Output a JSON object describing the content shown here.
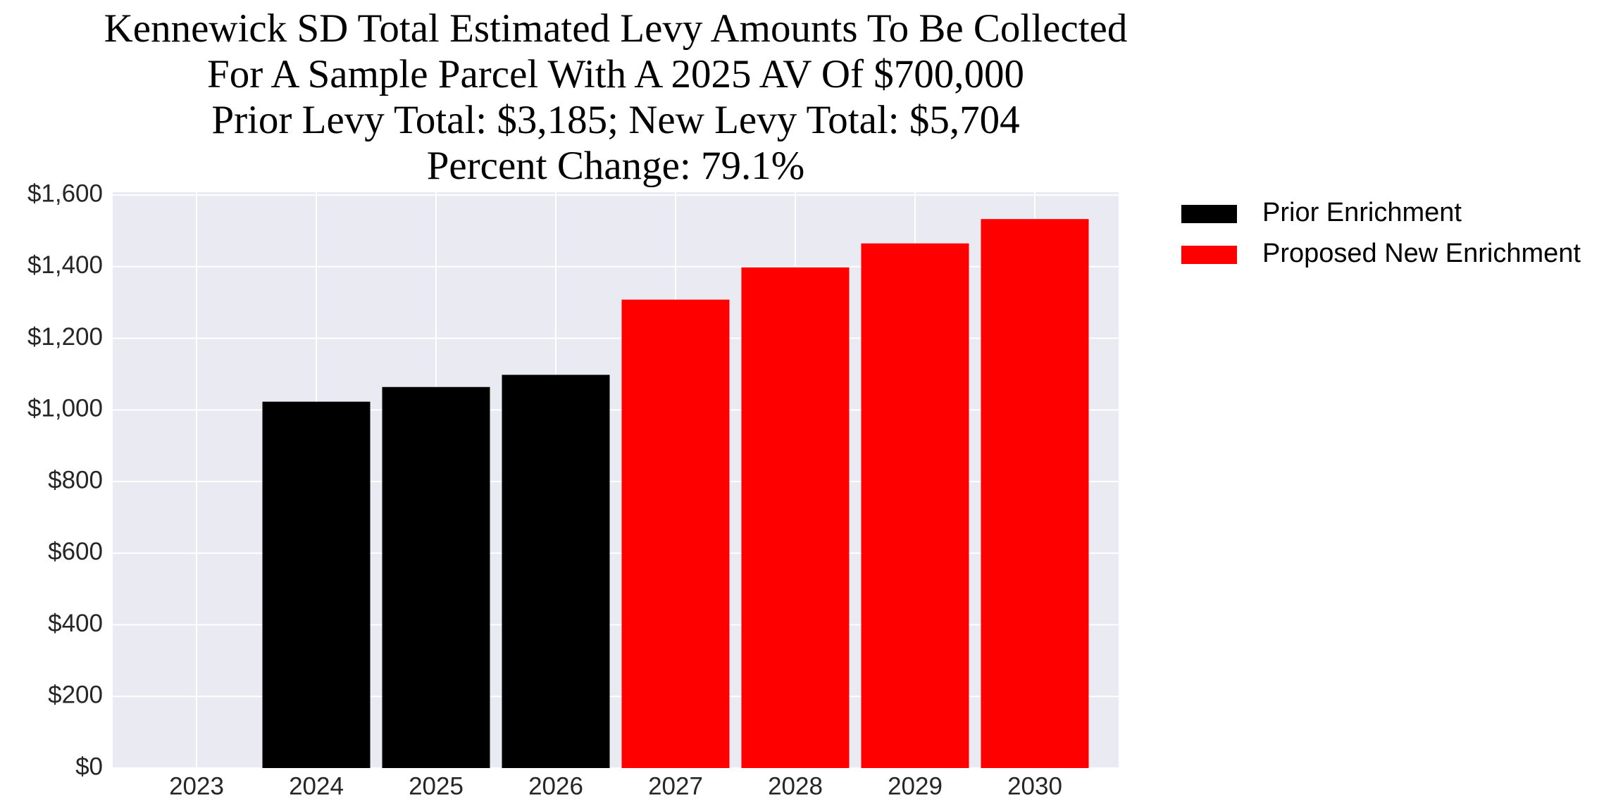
{
  "chart_data": {
    "type": "bar",
    "title": [
      "Kennewick SD Total Estimated Levy Amounts To Be Collected",
      "For A Sample Parcel With A 2025 AV Of $700,000",
      "Prior Levy Total:  $3,185; New Levy Total: $5,704",
      "Percent Change: 79.1%"
    ],
    "categories": [
      "2023",
      "2024",
      "2025",
      "2026",
      "2027",
      "2028",
      "2029",
      "2030"
    ],
    "series": [
      {
        "name": "Prior Enrichment",
        "color": "#000000",
        "values": [
          null,
          1023,
          1064,
          1098,
          null,
          null,
          null,
          null
        ]
      },
      {
        "name": "Proposed New Enrichment",
        "color": "#ff0000",
        "values": [
          null,
          null,
          null,
          null,
          1308,
          1398,
          1465,
          1533
        ]
      }
    ],
    "ylim": [
      0,
      1608
    ],
    "yticks": [
      {
        "value": 0,
        "label": "$0"
      },
      {
        "value": 200,
        "label": "$200"
      },
      {
        "value": 400,
        "label": "$400"
      },
      {
        "value": 600,
        "label": "$600"
      },
      {
        "value": 800,
        "label": "$800"
      },
      {
        "value": 1000,
        "label": "$1,000"
      },
      {
        "value": 1200,
        "label": "$1,200"
      },
      {
        "value": 1400,
        "label": "$1,400"
      },
      {
        "value": 1600,
        "label": "$1,600"
      }
    ],
    "grid": true,
    "legend": "outside-right"
  }
}
